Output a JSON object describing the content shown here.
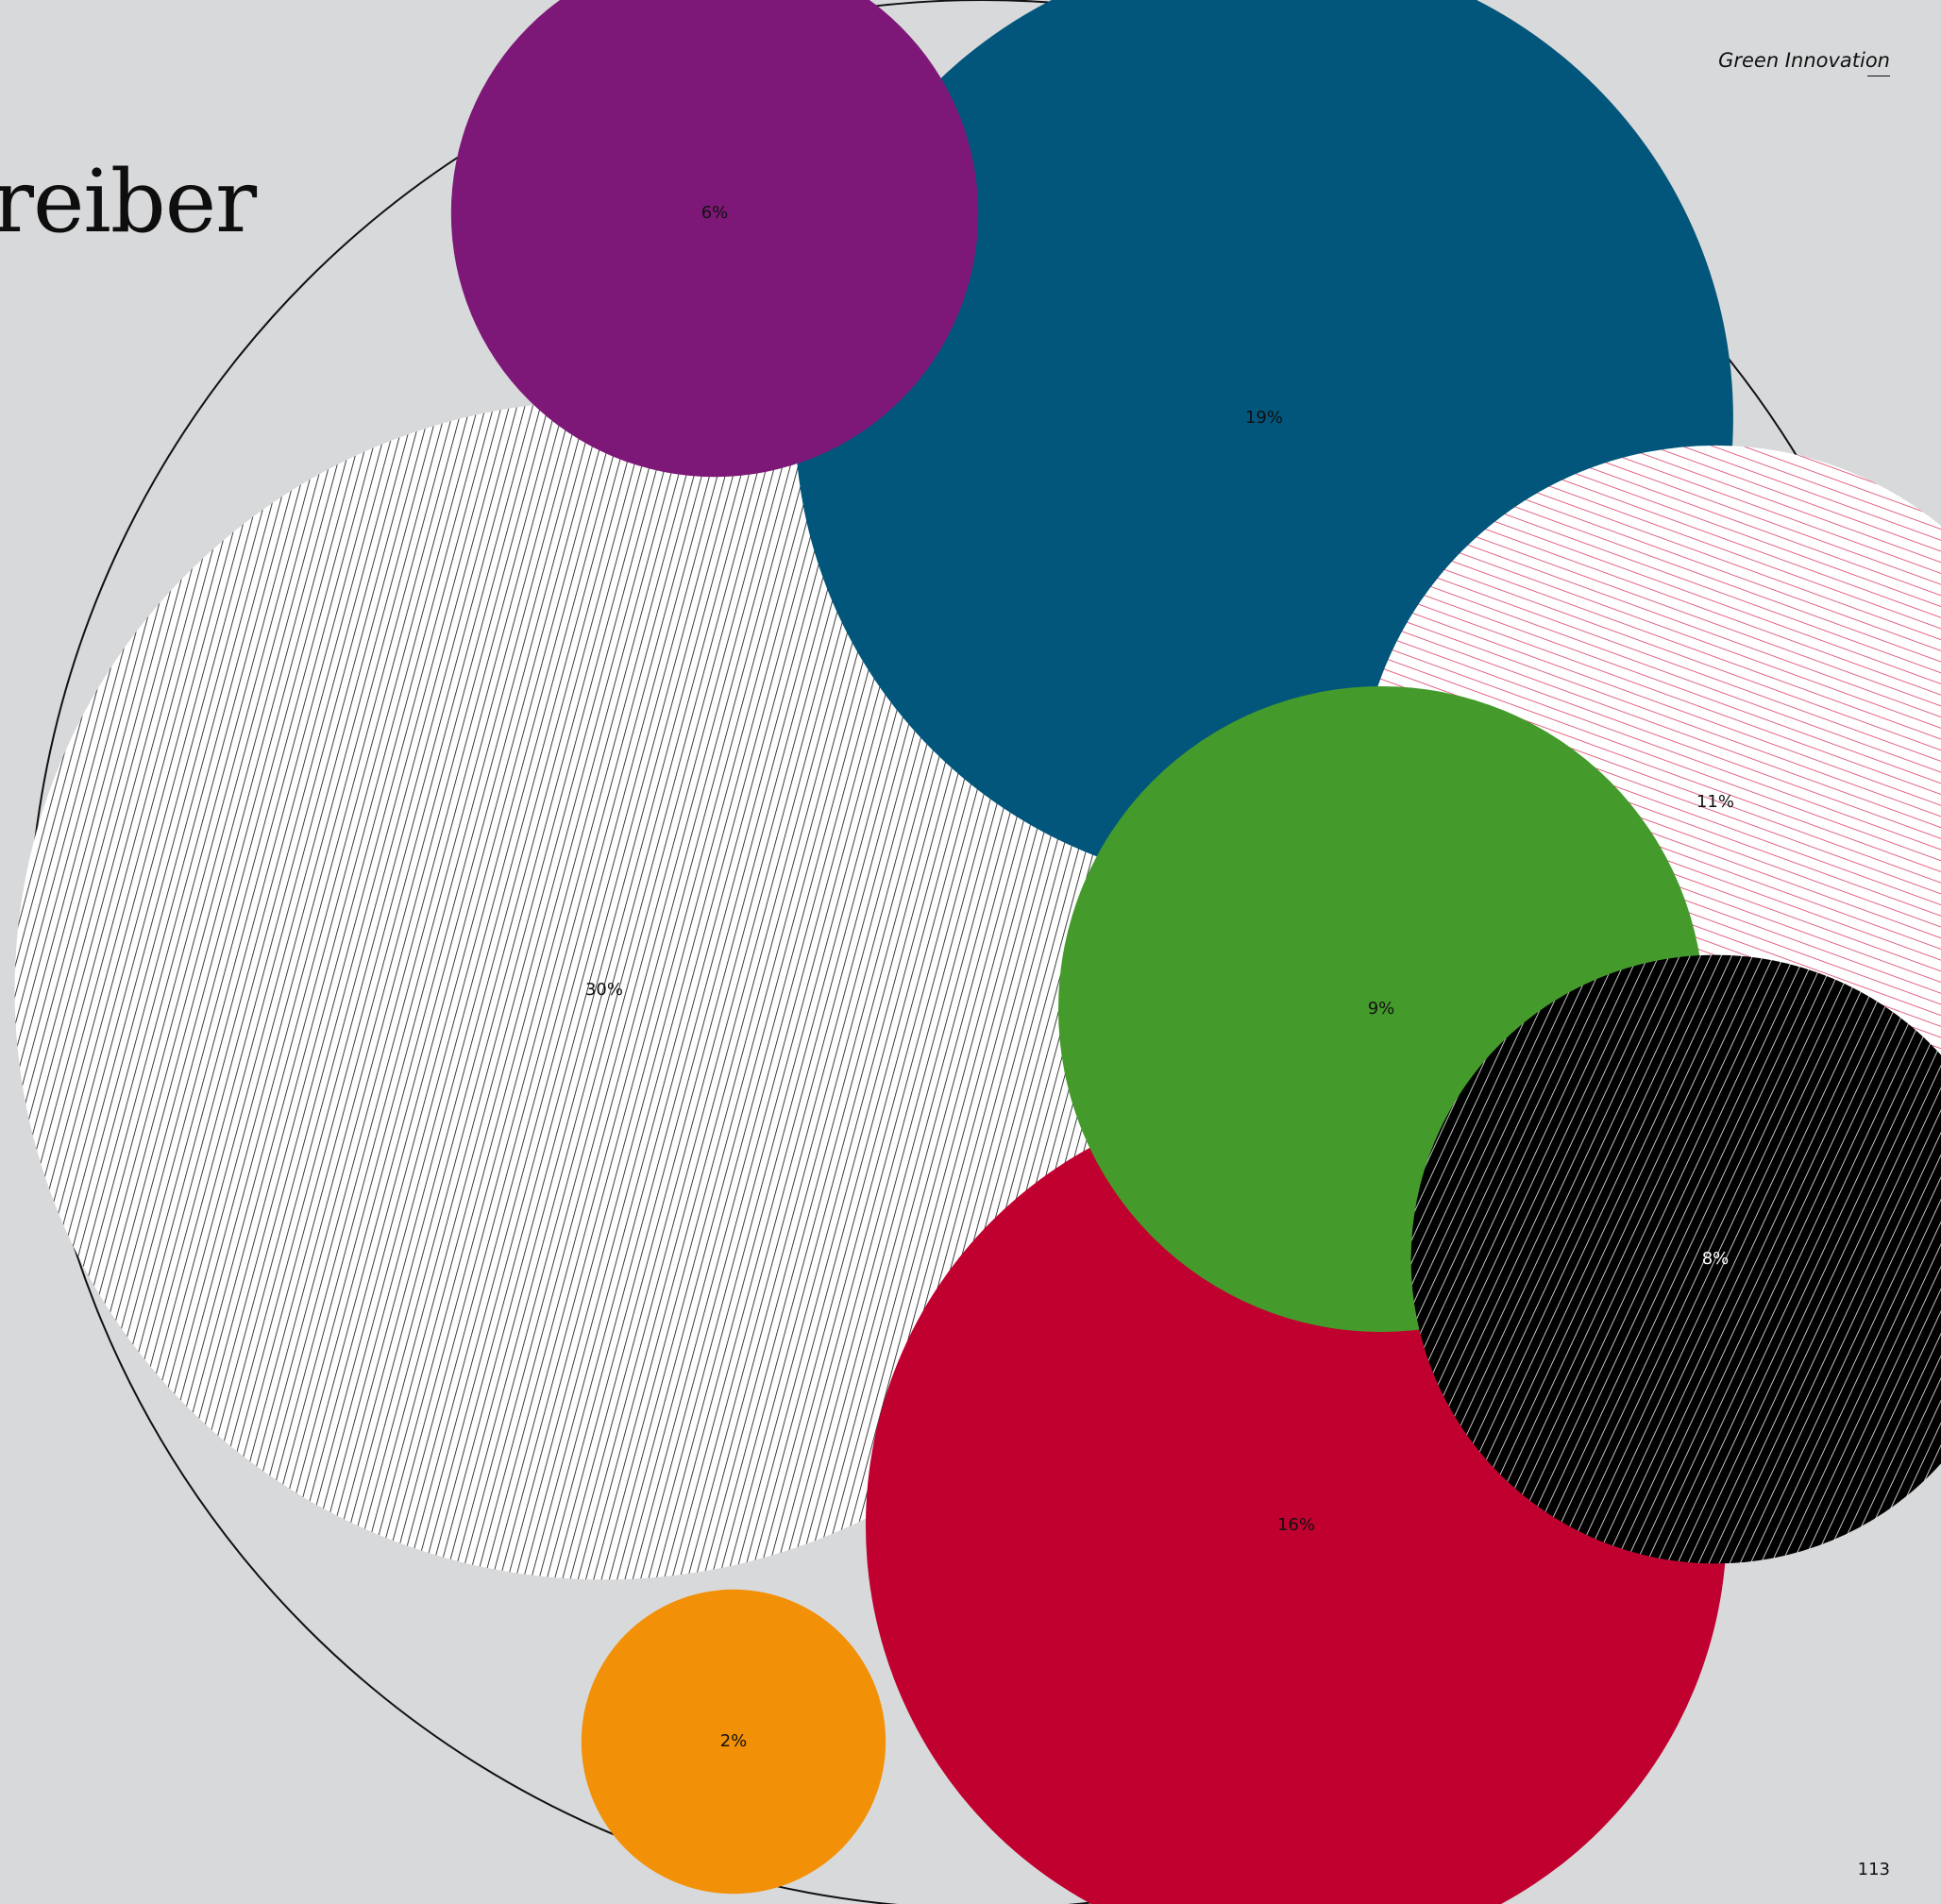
{
  "page": {
    "title_fragment": "reiber",
    "header_label": "Green Innovation",
    "page_number": "113"
  },
  "chart_data": {
    "type": "bubble",
    "title": "",
    "series": [
      {
        "value": 30,
        "label": "30%",
        "color": "#ffffff",
        "style": "hatch",
        "hatch_color": "#111111",
        "text_color": "#111111"
      },
      {
        "value": 19,
        "label": "19%",
        "color": "#02567b",
        "style": "solid",
        "text_color": "#111111"
      },
      {
        "value": 16,
        "label": "16%",
        "color": "#c0012f",
        "style": "solid",
        "text_color": "#111111"
      },
      {
        "value": 11,
        "label": "11%",
        "color": "#ffffff",
        "style": "hatch",
        "hatch_color": "#d5274f",
        "text_color": "#111111"
      },
      {
        "value": 9,
        "label": "9%",
        "color": "#449b2c",
        "style": "solid",
        "text_color": "#111111"
      },
      {
        "value": 8,
        "label": "8%",
        "color": "#000000",
        "style": "hatch",
        "hatch_color": "#ffffff",
        "text_color": "#ffffff"
      },
      {
        "value": 6,
        "label": "6%",
        "color": "#7e1878",
        "style": "solid",
        "text_color": "#111111"
      },
      {
        "value": 2,
        "label": "2%",
        "color": "#f29107",
        "style": "solid",
        "text_color": "#111111"
      }
    ]
  }
}
